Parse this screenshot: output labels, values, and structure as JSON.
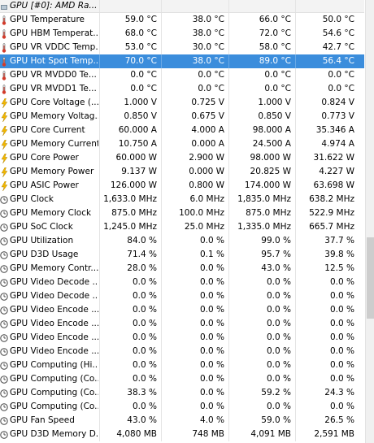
{
  "header": {
    "device_name": "GPU [#0]: AMD Ra..."
  },
  "rows": [
    {
      "name": "GPU Temperature",
      "icon": "thermometer-icon",
      "current": "59.0 °C",
      "min": "38.0 °C",
      "max": "66.0 °C",
      "avg": "50.0 °C"
    },
    {
      "name": "GPU HBM Temperat...",
      "icon": "thermometer-icon",
      "current": "68.0 °C",
      "min": "38.0 °C",
      "max": "72.0 °C",
      "avg": "54.6 °C"
    },
    {
      "name": "GPU VR VDDC Temp...",
      "icon": "thermometer-icon",
      "current": "53.0 °C",
      "min": "30.0 °C",
      "max": "58.0 °C",
      "avg": "42.7 °C"
    },
    {
      "name": "GPU Hot Spot Temp...",
      "icon": "thermometer-icon",
      "current": "70.0 °C",
      "min": "38.0 °C",
      "max": "89.0 °C",
      "avg": "56.4 °C",
      "selected": true
    },
    {
      "name": "GPU VR MVDD0 Te...",
      "icon": "thermometer-icon",
      "current": "0.0 °C",
      "min": "0.0 °C",
      "max": "0.0 °C",
      "avg": "0.0 °C"
    },
    {
      "name": "GPU VR MVDD1 Te...",
      "icon": "thermometer-icon",
      "current": "0.0 °C",
      "min": "0.0 °C",
      "max": "0.0 °C",
      "avg": "0.0 °C"
    },
    {
      "name": "GPU Core Voltage (...",
      "icon": "lightning-icon",
      "current": "1.000 V",
      "min": "0.725 V",
      "max": "1.000 V",
      "avg": "0.824 V"
    },
    {
      "name": "GPU Memory Voltag...",
      "icon": "lightning-icon",
      "current": "0.850 V",
      "min": "0.675 V",
      "max": "0.850 V",
      "avg": "0.773 V"
    },
    {
      "name": "GPU Core Current",
      "icon": "lightning-icon",
      "current": "60.000 A",
      "min": "4.000 A",
      "max": "98.000 A",
      "avg": "35.346 A"
    },
    {
      "name": "GPU Memory Current",
      "icon": "lightning-icon",
      "current": "10.750 A",
      "min": "0.000 A",
      "max": "24.500 A",
      "avg": "4.974 A"
    },
    {
      "name": "GPU Core Power",
      "icon": "lightning-icon",
      "current": "60.000 W",
      "min": "2.900 W",
      "max": "98.000 W",
      "avg": "31.622 W"
    },
    {
      "name": "GPU Memory Power",
      "icon": "lightning-icon",
      "current": "9.137 W",
      "min": "0.000 W",
      "max": "20.825 W",
      "avg": "4.227 W"
    },
    {
      "name": "GPU ASIC Power",
      "icon": "lightning-icon",
      "current": "126.000 W",
      "min": "0.800 W",
      "max": "174.000 W",
      "avg": "63.698 W"
    },
    {
      "name": "GPU Clock",
      "icon": "clock-icon",
      "current": "1,633.0 MHz",
      "min": "6.0 MHz",
      "max": "1,835.0 MHz",
      "avg": "638.2 MHz"
    },
    {
      "name": "GPU Memory Clock",
      "icon": "clock-icon",
      "current": "875.0 MHz",
      "min": "100.0 MHz",
      "max": "875.0 MHz",
      "avg": "522.9 MHz"
    },
    {
      "name": "GPU SoC Clock",
      "icon": "clock-icon",
      "current": "1,245.0 MHz",
      "min": "25.0 MHz",
      "max": "1,335.0 MHz",
      "avg": "665.7 MHz"
    },
    {
      "name": "GPU Utilization",
      "icon": "clock-icon",
      "current": "84.0 %",
      "min": "0.0 %",
      "max": "99.0 %",
      "avg": "37.7 %"
    },
    {
      "name": "GPU D3D Usage",
      "icon": "clock-icon",
      "current": "71.4 %",
      "min": "0.1 %",
      "max": "95.7 %",
      "avg": "39.8 %"
    },
    {
      "name": "GPU Memory Contr...",
      "icon": "clock-icon",
      "current": "28.0 %",
      "min": "0.0 %",
      "max": "43.0 %",
      "avg": "12.5 %"
    },
    {
      "name": "GPU Video Decode ...",
      "icon": "clock-icon",
      "current": "0.0 %",
      "min": "0.0 %",
      "max": "0.0 %",
      "avg": "0.0 %"
    },
    {
      "name": "GPU Video Decode ...",
      "icon": "clock-icon",
      "current": "0.0 %",
      "min": "0.0 %",
      "max": "0.0 %",
      "avg": "0.0 %"
    },
    {
      "name": "GPU Video Encode ...",
      "icon": "clock-icon",
      "current": "0.0 %",
      "min": "0.0 %",
      "max": "0.0 %",
      "avg": "0.0 %"
    },
    {
      "name": "GPU Video Encode ...",
      "icon": "clock-icon",
      "current": "0.0 %",
      "min": "0.0 %",
      "max": "0.0 %",
      "avg": "0.0 %"
    },
    {
      "name": "GPU Video Encode ...",
      "icon": "clock-icon",
      "current": "0.0 %",
      "min": "0.0 %",
      "max": "0.0 %",
      "avg": "0.0 %"
    },
    {
      "name": "GPU Video Encode ...",
      "icon": "clock-icon",
      "current": "0.0 %",
      "min": "0.0 %",
      "max": "0.0 %",
      "avg": "0.0 %"
    },
    {
      "name": "GPU Computing (Hi...",
      "icon": "clock-icon",
      "current": "0.0 %",
      "min": "0.0 %",
      "max": "0.0 %",
      "avg": "0.0 %"
    },
    {
      "name": "GPU Computing (Co...",
      "icon": "clock-icon",
      "current": "0.0 %",
      "min": "0.0 %",
      "max": "0.0 %",
      "avg": "0.0 %"
    },
    {
      "name": "GPU Computing (Co...",
      "icon": "clock-icon",
      "current": "38.3 %",
      "min": "0.0 %",
      "max": "59.2 %",
      "avg": "24.3 %"
    },
    {
      "name": "GPU Computing (Co...",
      "icon": "clock-icon",
      "current": "0.0 %",
      "min": "0.0 %",
      "max": "0.0 %",
      "avg": "0.0 %"
    },
    {
      "name": "GPU Fan Speed",
      "icon": "clock-icon",
      "current": "43.0 %",
      "min": "4.0 %",
      "max": "59.0 %",
      "avg": "26.5 %"
    },
    {
      "name": "GPU D3D Memory D...",
      "icon": "clock-icon",
      "current": "4,080 MB",
      "min": "748 MB",
      "max": "4,091 MB",
      "avg": "2,591 MB"
    }
  ],
  "colors": {
    "selection": "#3b8ddc",
    "thermometer": "#d23a2a",
    "lightning": "#f2b600",
    "clock": "#444444"
  }
}
